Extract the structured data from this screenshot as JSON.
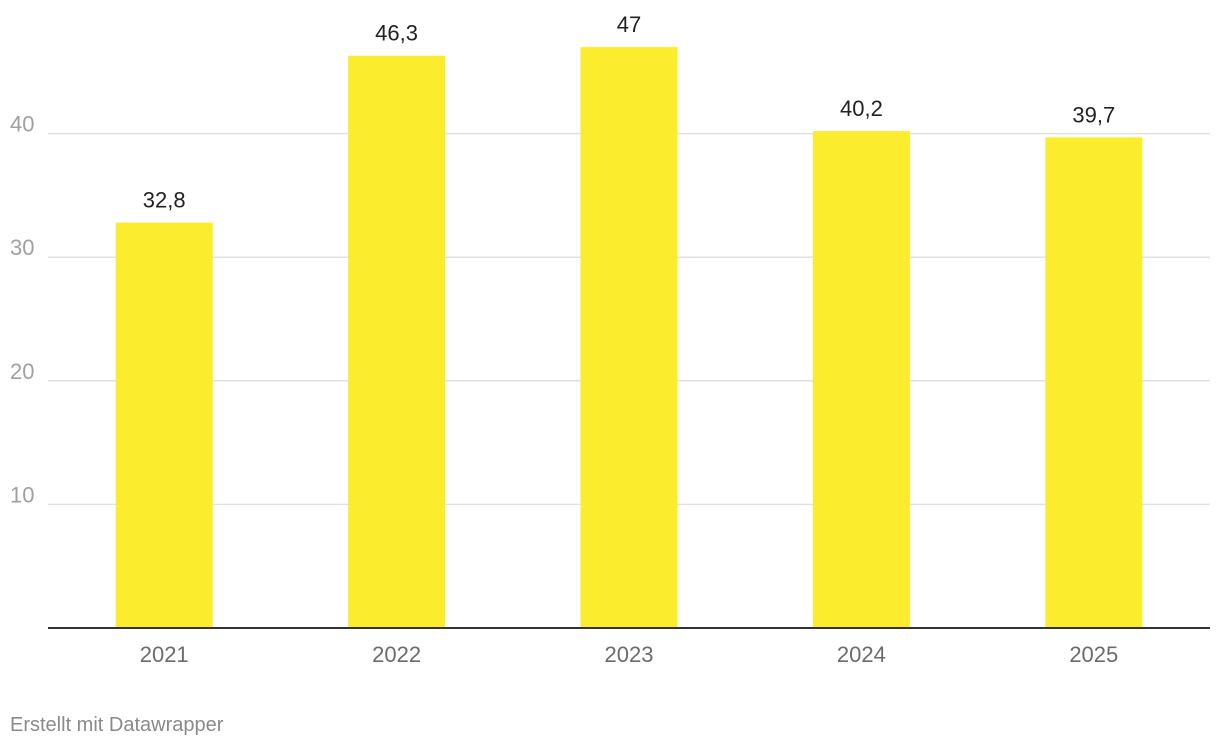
{
  "chart_data": {
    "type": "bar",
    "categories": [
      "2021",
      "2022",
      "2023",
      "2024",
      "2025"
    ],
    "values": [
      32.8,
      46.3,
      47,
      40.2,
      39.7
    ],
    "value_labels": [
      "32,8",
      "46,3",
      "47",
      "40,2",
      "39,7"
    ],
    "y_ticks": [
      10,
      20,
      30,
      40
    ],
    "ylim": [
      0,
      50
    ],
    "grid": true,
    "bar_color": "#fcec2e",
    "title": "",
    "xlabel": "",
    "ylabel": ""
  },
  "footer": {
    "credit": "Erstellt mit Datawrapper"
  }
}
